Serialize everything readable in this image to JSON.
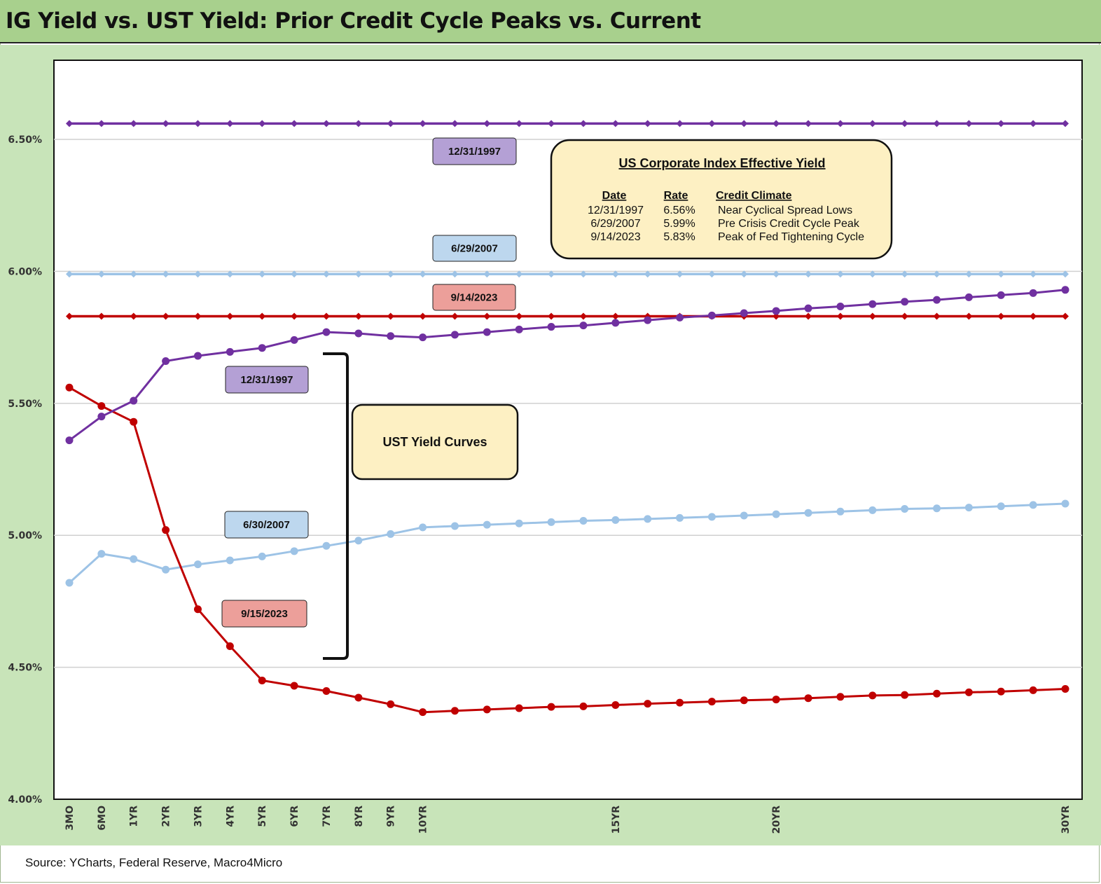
{
  "title": "IG Yield vs. UST Yield: Prior Credit Cycle Peaks vs. Current",
  "source": "Source: YCharts, Federal Reserve, Macro4Micro",
  "colors": {
    "purple": "#7030a0",
    "light_blue": "#9dc3e6",
    "red": "#c00000",
    "purple_label_bg": "#b4a0d5",
    "blue_label_bg": "#bdd7ee",
    "red_label_bg": "#ec9f9a",
    "note_bg": "#fdf0c3",
    "plot_bg": "#ffffff",
    "panel_bg": "#c8e4b9",
    "title_bg": "#a8d08d"
  },
  "chart_data": {
    "type": "line",
    "title": "IG Yield vs. UST Yield: Prior Credit Cycle Peaks vs. Current",
    "x_tick_labels": [
      "3MO",
      "6MO",
      "1YR",
      "2YR",
      "3YR",
      "4YR",
      "5YR",
      "6YR",
      "7YR",
      "8YR",
      "9YR",
      "10YR",
      "",
      "",
      "",
      "",
      "",
      "15YR",
      "",
      "",
      "",
      "",
      "20YR",
      "",
      "",
      "",
      "",
      "",
      "",
      "",
      "",
      "30YR"
    ],
    "ylim": [
      4.0,
      6.8
    ],
    "yticks": [
      4.0,
      4.5,
      5.0,
      5.5,
      6.0,
      6.5
    ],
    "ytick_labels": [
      "4.00%",
      "4.50%",
      "5.00%",
      "5.50%",
      "6.00%",
      "6.50%"
    ],
    "grid": true,
    "series": [
      {
        "id": "ig_1997",
        "kind": "ig",
        "color": "#7030a0",
        "marker": "diamond",
        "values": [
          6.56,
          6.56,
          6.56,
          6.56,
          6.56,
          6.56,
          6.56,
          6.56,
          6.56,
          6.56,
          6.56,
          6.56,
          6.56,
          6.56,
          6.56,
          6.56,
          6.56,
          6.56,
          6.56,
          6.56,
          6.56,
          6.56,
          6.56,
          6.56,
          6.56,
          6.56,
          6.56,
          6.56,
          6.56,
          6.56,
          6.56,
          6.56
        ]
      },
      {
        "id": "ig_2007",
        "kind": "ig",
        "color": "#9dc3e6",
        "marker": "diamond",
        "values": [
          5.99,
          5.99,
          5.99,
          5.99,
          5.99,
          5.99,
          5.99,
          5.99,
          5.99,
          5.99,
          5.99,
          5.99,
          5.99,
          5.99,
          5.99,
          5.99,
          5.99,
          5.99,
          5.99,
          5.99,
          5.99,
          5.99,
          5.99,
          5.99,
          5.99,
          5.99,
          5.99,
          5.99,
          5.99,
          5.99,
          5.99,
          5.99
        ]
      },
      {
        "id": "ig_2023",
        "kind": "ig",
        "color": "#c00000",
        "marker": "diamond",
        "values": [
          5.83,
          5.83,
          5.83,
          5.83,
          5.83,
          5.83,
          5.83,
          5.83,
          5.83,
          5.83,
          5.83,
          5.83,
          5.83,
          5.83,
          5.83,
          5.83,
          5.83,
          5.83,
          5.83,
          5.83,
          5.83,
          5.83,
          5.83,
          5.83,
          5.83,
          5.83,
          5.83,
          5.83,
          5.83,
          5.83,
          5.83,
          5.83
        ]
      },
      {
        "id": "ust_2007",
        "kind": "ust",
        "color": "#9dc3e6",
        "marker": "circle",
        "values": [
          4.82,
          4.93,
          4.91,
          4.87,
          4.89,
          4.905,
          4.92,
          4.94,
          4.96,
          4.98,
          5.005,
          5.03,
          5.035,
          5.04,
          5.045,
          5.05,
          5.055,
          5.058,
          5.062,
          5.066,
          5.07,
          5.075,
          5.08,
          5.085,
          5.09,
          5.095,
          5.1,
          5.102,
          5.105,
          5.11,
          5.115,
          5.12
        ]
      },
      {
        "id": "ust_2023",
        "kind": "ust",
        "color": "#c00000",
        "marker": "circle",
        "values": [
          5.56,
          5.49,
          5.43,
          5.02,
          4.72,
          4.58,
          4.45,
          4.43,
          4.41,
          4.385,
          4.36,
          4.33,
          4.335,
          4.34,
          4.345,
          4.35,
          4.352,
          4.357,
          4.362,
          4.366,
          4.37,
          4.375,
          4.378,
          4.383,
          4.388,
          4.393,
          4.395,
          4.4,
          4.405,
          4.408,
          4.413,
          4.418
        ]
      },
      {
        "id": "ust_1997",
        "kind": "ust",
        "color": "#7030a0",
        "marker": "circle",
        "values": [
          5.36,
          5.45,
          5.51,
          5.66,
          5.68,
          5.695,
          5.71,
          5.74,
          5.77,
          5.765,
          5.755,
          5.75,
          5.76,
          5.77,
          5.78,
          5.79,
          5.795,
          5.805,
          5.815,
          5.825,
          5.833,
          5.842,
          5.85,
          5.86,
          5.867,
          5.876,
          5.885,
          5.892,
          5.902,
          5.91,
          5.918,
          5.93
        ]
      }
    ],
    "annotations": {
      "ig_labels": [
        "12/31/1997",
        "6/29/2007",
        "9/14/2023"
      ],
      "ust_labels": [
        "12/31/1997",
        "6/30/2007",
        "9/15/2023"
      ],
      "ust_box": "UST Yield Curves",
      "info_box": {
        "title": "US Corporate Index Effective Yield",
        "headers": [
          "Date",
          "Rate",
          "Credit Climate"
        ],
        "rows": [
          [
            "12/31/1997",
            "6.56%",
            "Near Cyclical Spread Lows"
          ],
          [
            "6/29/2007",
            "5.99%",
            "Pre Crisis Credit Cycle Peak"
          ],
          [
            "9/14/2023",
            "5.83%",
            "Peak of Fed Tightening Cycle"
          ]
        ]
      }
    }
  }
}
